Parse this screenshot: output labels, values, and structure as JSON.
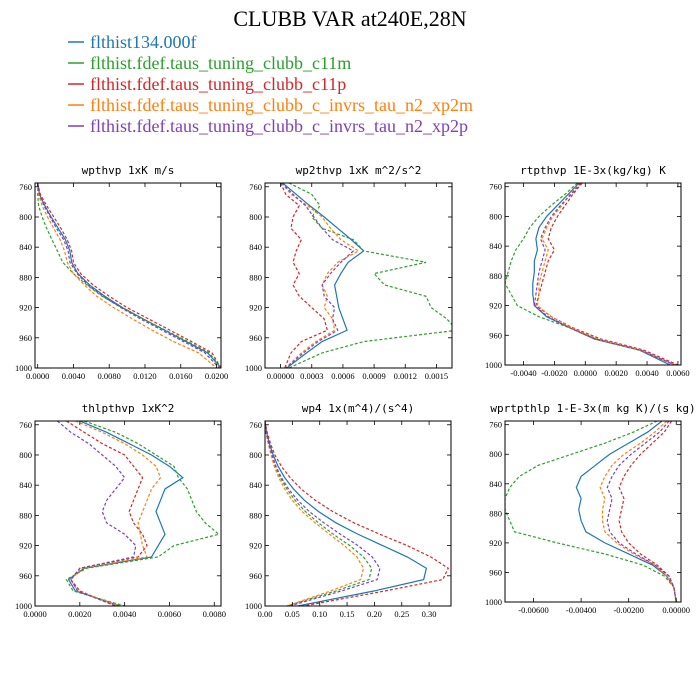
{
  "figure_title": "CLUBB VAR at240E,28N",
  "legend": [
    {
      "label": "flthist134.000f",
      "color": "#1f77b4",
      "dash": "solid"
    },
    {
      "label": "flthist.fdef.taus_tuning_clubb_c11m",
      "color": "#2ca02c",
      "dash": "dashed"
    },
    {
      "label": "flthist.fdef.taus_tuning_clubb_c11p",
      "color": "#d62728",
      "dash": "dashed"
    },
    {
      "label": "flthist.fdef.taus_tuning_clubb_c_invrs_tau_n2_xp2m",
      "color": "#ff7f0e",
      "dash": "dashed"
    },
    {
      "label": "flthist.fdef.taus_tuning_clubb_c_invrs_tau_n2_xp2p",
      "color": "#7f3fbf",
      "dash": "dashed"
    }
  ],
  "chart_data": [
    {
      "type": "line",
      "title": "wpthvp  1xK m/s",
      "y": [
        755,
        770,
        785,
        800,
        815,
        830,
        845,
        860,
        875,
        890,
        905,
        920,
        935,
        950,
        965,
        980,
        1000
      ],
      "ylim": [
        1000,
        755
      ],
      "yticks": [
        760,
        800,
        840,
        880,
        920,
        960,
        1000
      ],
      "xlim": [
        -0.0003,
        0.0205
      ],
      "xticks": [
        0,
        0.004,
        0.008,
        0.012,
        0.016,
        0.02
      ],
      "xtick_labels": [
        "0.0000",
        "0.0040",
        "0.0080",
        "0.0120",
        "0.0160",
        "0.0200"
      ],
      "series": [
        {
          "values": [
            0.0,
            0.0002,
            0.0008,
            0.0015,
            0.0023,
            0.0031,
            0.0036,
            0.0038,
            0.0045,
            0.0058,
            0.0075,
            0.0095,
            0.0118,
            0.0142,
            0.0166,
            0.019,
            0.0205
          ]
        },
        {
          "values": [
            0.0,
            0.0,
            0.0001,
            0.0005,
            0.001,
            0.0016,
            0.0022,
            0.0028,
            0.004,
            0.0055,
            0.0072,
            0.0094,
            0.0118,
            0.0143,
            0.0168,
            0.0192,
            0.0205
          ]
        },
        {
          "values": [
            0.0,
            0.0003,
            0.001,
            0.0018,
            0.0026,
            0.0033,
            0.0038,
            0.004,
            0.0048,
            0.0062,
            0.008,
            0.01,
            0.0124,
            0.0148,
            0.0172,
            0.0195,
            0.0205
          ]
        },
        {
          "values": [
            0.0,
            0.0001,
            0.0005,
            0.0011,
            0.0018,
            0.0025,
            0.003,
            0.0033,
            0.004,
            0.0052,
            0.0066,
            0.0085,
            0.0106,
            0.0128,
            0.0152,
            0.018,
            0.02
          ]
        },
        {
          "values": [
            0.0,
            0.0002,
            0.0007,
            0.0014,
            0.0021,
            0.0029,
            0.0034,
            0.0036,
            0.0044,
            0.0056,
            0.0073,
            0.0093,
            0.0115,
            0.0139,
            0.0163,
            0.0187,
            0.0203
          ]
        }
      ]
    },
    {
      "type": "line",
      "title": "wp2thvp  1xK m^2/s^2",
      "y": [
        755,
        770,
        785,
        800,
        815,
        830,
        845,
        860,
        875,
        890,
        905,
        920,
        935,
        950,
        965,
        980,
        1000
      ],
      "ylim": [
        1000,
        755
      ],
      "yticks": [
        760,
        800,
        840,
        880,
        920,
        960,
        1000
      ],
      "xlim": [
        -0.00015,
        0.00165
      ],
      "xticks": [
        0,
        0.0003,
        0.0006,
        0.0009,
        0.0012,
        0.0015
      ],
      "xtick_labels": [
        "0.00000",
        "0.0003",
        "0.0006",
        "0.0009",
        "0.0012",
        "0.0015"
      ],
      "series": [
        {
          "values": [
            2e-05,
            0.00015,
            0.00028,
            0.00042,
            0.00055,
            0.00068,
            0.0008,
            0.00065,
            0.00058,
            0.00052,
            0.00054,
            0.00056,
            0.0006,
            0.00064,
            0.0004,
            0.00025,
            6e-05
          ]
        },
        {
          "values": [
            8e-05,
            0.0003,
            0.00038,
            0.0003,
            0.0004,
            0.0007,
            0.0008,
            0.0014,
            0.0009,
            0.001,
            0.0014,
            0.00145,
            0.0016,
            0.0017,
            0.0008,
            0.0004,
            8e-05
          ]
        },
        {
          "values": [
            0.0,
            5e-05,
            0.00018,
            0.00012,
            0.0001,
            0.0002,
            0.00015,
            0.00012,
            0.00018,
            0.00012,
            0.00018,
            0.0003,
            0.00042,
            0.00045,
            0.0002,
            0.0001,
            4e-05
          ]
        },
        {
          "values": [
            1e-05,
            0.0001,
            0.00026,
            0.0004,
            0.00048,
            0.00058,
            0.00075,
            0.00055,
            0.00045,
            0.0004,
            0.00045,
            0.00042,
            0.0005,
            0.00052,
            0.00034,
            0.0002,
            5e-05
          ]
        },
        {
          "values": [
            1e-05,
            0.00012,
            0.00024,
            0.00032,
            0.0004,
            0.0005,
            0.0007,
            0.00058,
            0.00048,
            0.0004,
            0.00042,
            0.00052,
            0.0005,
            0.00055,
            0.00036,
            0.00022,
            5e-05
          ]
        }
      ]
    },
    {
      "type": "line",
      "title": "rtpthvp  1E-3x(kg/kg) K",
      "y": [
        755,
        770,
        785,
        800,
        815,
        830,
        845,
        860,
        875,
        890,
        905,
        920,
        935,
        950,
        965,
        980,
        1000
      ],
      "ylim": [
        1000,
        755
      ],
      "yticks": [
        760,
        800,
        840,
        880,
        920,
        960,
        1000
      ],
      "xlim": [
        -0.0052,
        0.0062
      ],
      "xticks": [
        -0.004,
        -0.002,
        0,
        0.002,
        0.004,
        0.006
      ],
      "xtick_labels": [
        "-0.0040",
        "-0.0020",
        "0.0000",
        "0.0020",
        "0.0040",
        "0.0060"
      ],
      "series": [
        {
          "values": [
            -0.0004,
            -0.0011,
            -0.0018,
            -0.0025,
            -0.003,
            -0.0032,
            -0.0031,
            -0.0033,
            -0.0033,
            -0.0034,
            -0.0034,
            -0.0033,
            -0.0025,
            -0.001,
            0.0006,
            0.0035,
            0.0055
          ]
        },
        {
          "values": [
            -0.0005,
            -0.0013,
            -0.0022,
            -0.003,
            -0.0036,
            -0.004,
            -0.0045,
            -0.0048,
            -0.005,
            -0.0052,
            -0.0048,
            -0.0044,
            -0.003,
            -0.001,
            0.0006,
            0.0035,
            0.0058
          ]
        },
        {
          "values": [
            -0.0002,
            -0.0008,
            -0.0013,
            -0.0018,
            -0.0022,
            -0.0024,
            -0.002,
            -0.0024,
            -0.0026,
            -0.0028,
            -0.003,
            -0.0032,
            -0.0022,
            -0.0008,
            0.001,
            0.0038,
            0.006
          ]
        },
        {
          "values": [
            -0.0003,
            -0.001,
            -0.0015,
            -0.0021,
            -0.0025,
            -0.0028,
            -0.0024,
            -0.0026,
            -0.0028,
            -0.003,
            -0.003,
            -0.0031,
            -0.0022,
            -0.0009,
            0.0008,
            0.0036,
            0.0058
          ]
        },
        {
          "values": [
            -0.0003,
            -0.0009,
            -0.0016,
            -0.0022,
            -0.0026,
            -0.0029,
            -0.0026,
            -0.0028,
            -0.003,
            -0.0031,
            -0.0032,
            -0.0033,
            -0.0024,
            -0.001,
            0.0007,
            0.0036,
            0.0058
          ]
        }
      ]
    },
    {
      "type": "line",
      "title": "thlpthvp  1xK^2",
      "y": [
        755,
        770,
        785,
        800,
        815,
        830,
        845,
        860,
        875,
        890,
        905,
        920,
        935,
        950,
        965,
        980,
        1000
      ],
      "ylim": [
        1000,
        755
      ],
      "yticks": [
        760,
        800,
        840,
        880,
        920,
        960,
        1000
      ],
      "xlim": [
        0,
        0.0083
      ],
      "xticks": [
        0,
        0.002,
        0.004,
        0.006,
        0.008
      ],
      "xtick_labels": [
        "0.0000",
        "0.0020",
        "0.0040",
        "0.0060",
        "0.0080"
      ],
      "series": [
        {
          "values": [
            0.002,
            0.0032,
            0.0042,
            0.0052,
            0.006,
            0.0066,
            0.0058,
            0.0056,
            0.0054,
            0.0056,
            0.0058,
            0.0055,
            0.0052,
            0.0022,
            0.0015,
            0.0018,
            0.0038
          ]
        },
        {
          "values": [
            0.0022,
            0.0036,
            0.0046,
            0.0054,
            0.0062,
            0.0064,
            0.0068,
            0.007,
            0.0072,
            0.0076,
            0.0082,
            0.0062,
            0.0055,
            0.0023,
            0.0014,
            0.0017,
            0.004
          ]
        },
        {
          "values": [
            0.0014,
            0.0022,
            0.003,
            0.004,
            0.0044,
            0.0048,
            0.0046,
            0.0044,
            0.0042,
            0.0044,
            0.0048,
            0.005,
            0.0046,
            0.002,
            0.0016,
            0.002,
            0.0036
          ]
        },
        {
          "values": [
            0.0018,
            0.003,
            0.004,
            0.0048,
            0.0054,
            0.0056,
            0.0052,
            0.005,
            0.0048,
            0.0046,
            0.0047,
            0.0048,
            0.005,
            0.0021,
            0.0016,
            0.0019,
            0.0038
          ]
        },
        {
          "values": [
            0.001,
            0.0016,
            0.0024,
            0.003,
            0.0036,
            0.004,
            0.0036,
            0.0032,
            0.003,
            0.0032,
            0.004,
            0.0045,
            0.0044,
            0.002,
            0.0016,
            0.0019,
            0.0036
          ]
        }
      ]
    },
    {
      "type": "line",
      "title": "wp4  1x(m^4)/(s^4)",
      "y": [
        755,
        770,
        785,
        800,
        815,
        830,
        845,
        860,
        875,
        890,
        905,
        920,
        935,
        950,
        965,
        980,
        1000
      ],
      "ylim": [
        1000,
        755
      ],
      "yticks": [
        760,
        800,
        840,
        880,
        920,
        960,
        1000
      ],
      "xlim": [
        0,
        0.34
      ],
      "xticks": [
        0,
        0.05,
        0.1,
        0.15,
        0.2,
        0.25,
        0.3
      ],
      "xtick_labels": [
        "0.00",
        "0.05",
        "0.10",
        "0.15",
        "0.20",
        "0.25",
        "0.30"
      ],
      "series": [
        {
          "values": [
            0.0,
            0.003,
            0.008,
            0.015,
            0.024,
            0.036,
            0.052,
            0.072,
            0.098,
            0.13,
            0.17,
            0.215,
            0.26,
            0.295,
            0.29,
            0.2,
            0.06
          ]
        },
        {
          "values": [
            0.0,
            0.002,
            0.006,
            0.012,
            0.019,
            0.028,
            0.04,
            0.055,
            0.074,
            0.098,
            0.125,
            0.155,
            0.18,
            0.195,
            0.19,
            0.13,
            0.04
          ]
        },
        {
          "values": [
            0.0,
            0.004,
            0.01,
            0.018,
            0.03,
            0.046,
            0.066,
            0.092,
            0.124,
            0.163,
            0.21,
            0.26,
            0.303,
            0.335,
            0.325,
            0.22,
            0.07
          ]
        },
        {
          "values": [
            0.0,
            0.002,
            0.006,
            0.011,
            0.017,
            0.025,
            0.036,
            0.05,
            0.068,
            0.092,
            0.118,
            0.145,
            0.168,
            0.18,
            0.175,
            0.12,
            0.04
          ]
        },
        {
          "values": [
            0.0,
            0.002,
            0.007,
            0.013,
            0.02,
            0.03,
            0.043,
            0.06,
            0.081,
            0.108,
            0.138,
            0.17,
            0.196,
            0.21,
            0.205,
            0.14,
            0.045
          ]
        }
      ]
    },
    {
      "type": "line",
      "title": "wprtpthlp  1-E-3x(m kg K)/(s kg)",
      "y": [
        755,
        770,
        785,
        800,
        815,
        830,
        845,
        860,
        875,
        890,
        905,
        920,
        935,
        950,
        965,
        980,
        1000
      ],
      "ylim": [
        1000,
        755
      ],
      "yticks": [
        760,
        800,
        840,
        880,
        920,
        960,
        1000
      ],
      "xlim": [
        -0.0072,
        0.0002
      ],
      "xticks": [
        -0.006,
        -0.004,
        -0.002,
        0
      ],
      "xtick_labels": [
        "-0.00600",
        "-0.00400",
        "-0.00200",
        "0.00000"
      ],
      "series": [
        {
          "values": [
            -0.0006,
            -0.0012,
            -0.002,
            -0.0028,
            -0.0034,
            -0.004,
            -0.0042,
            -0.004,
            -0.0041,
            -0.004,
            -0.0038,
            -0.003,
            -0.002,
            -0.001,
            -0.0004,
            -0.0001,
            0.0
          ]
        },
        {
          "values": [
            -0.0008,
            -0.0018,
            -0.003,
            -0.0044,
            -0.0058,
            -0.0066,
            -0.007,
            -0.0072,
            -0.0072,
            -0.007,
            -0.0068,
            -0.005,
            -0.003,
            -0.0014,
            -0.0005,
            -0.0001,
            0.0
          ]
        },
        {
          "values": [
            -0.0002,
            -0.0005,
            -0.001,
            -0.0015,
            -0.0019,
            -0.0022,
            -0.0024,
            -0.0022,
            -0.0023,
            -0.0024,
            -0.0023,
            -0.002,
            -0.0015,
            -0.0008,
            -0.0003,
            -0.0001,
            0.0
          ]
        },
        {
          "values": [
            -0.0004,
            -0.0009,
            -0.0015,
            -0.0022,
            -0.0027,
            -0.003,
            -0.0032,
            -0.003,
            -0.0031,
            -0.0031,
            -0.003,
            -0.0025,
            -0.0018,
            -0.0009,
            -0.0004,
            -0.0001,
            0.0
          ]
        },
        {
          "values": [
            -0.0003,
            -0.0007,
            -0.0013,
            -0.0019,
            -0.0024,
            -0.0027,
            -0.0029,
            -0.0027,
            -0.0028,
            -0.0029,
            -0.0028,
            -0.0024,
            -0.0017,
            -0.0009,
            -0.0003,
            -0.0001,
            0.0
          ]
        }
      ]
    }
  ]
}
